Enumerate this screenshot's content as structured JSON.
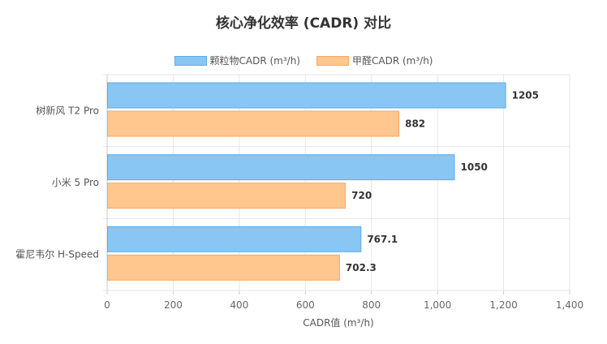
{
  "chart_data": {
    "type": "bar",
    "orientation": "horizontal",
    "title": "核心净化效率 (CADR) 对比",
    "xlabel": "CADR值 (m³/h)",
    "ylabel": "",
    "xlim": [
      0,
      1400
    ],
    "x_ticks": [
      0,
      200,
      400,
      600,
      800,
      1000,
      1200,
      1400
    ],
    "x_tick_labels": [
      "0",
      "200",
      "400",
      "600",
      "800",
      "1,000",
      "1,200",
      "1,400"
    ],
    "categories": [
      "树新风 T2 Pro",
      "小米 5 Pro",
      "霍尼韦尔 H-Speed"
    ],
    "series": [
      {
        "name": "颗粒物CADR (m³/h)",
        "values": [
          1205,
          1050,
          767.1
        ],
        "color": "#89C6F4",
        "border": "#5AAEE8"
      },
      {
        "name": "甲醛CADR (m³/h)",
        "values": [
          882,
          720,
          702.3
        ],
        "color": "#FFC68D",
        "border": "#F5AA66"
      }
    ],
    "grid": true,
    "legend_position": "top"
  }
}
